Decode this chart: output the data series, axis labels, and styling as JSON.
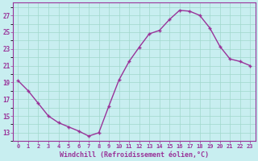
{
  "x": [
    0,
    1,
    2,
    3,
    4,
    5,
    6,
    7,
    8,
    9,
    10,
    11,
    12,
    13,
    14,
    15,
    16,
    17,
    18,
    19,
    20,
    21,
    22,
    23
  ],
  "y": [
    19.2,
    18.0,
    16.5,
    15.0,
    14.2,
    13.7,
    13.2,
    12.6,
    13.0,
    16.2,
    19.3,
    21.5,
    23.2,
    24.8,
    25.2,
    26.5,
    27.6,
    27.5,
    27.0,
    25.5,
    23.3,
    21.8,
    21.5,
    21.0
  ],
  "line_color": "#993399",
  "marker": "+",
  "marker_color": "#993399",
  "bg_color": "#c8eef0",
  "grid_color": "#a0d8cc",
  "xlabel": "Windchill (Refroidissement éolien,°C)",
  "xlabel_color": "#993399",
  "tick_color": "#993399",
  "spine_color": "#993399",
  "ylim": [
    12.0,
    28.5
  ],
  "yticks": [
    13,
    15,
    17,
    19,
    21,
    23,
    25,
    27
  ],
  "xticks": [
    0,
    1,
    2,
    3,
    4,
    5,
    6,
    7,
    8,
    9,
    10,
    11,
    12,
    13,
    14,
    15,
    16,
    17,
    18,
    19,
    20,
    21,
    22,
    23
  ],
  "xtick_labels": [
    "0",
    "1",
    "2",
    "3",
    "4",
    "5",
    "6",
    "7",
    "8",
    "9",
    "10",
    "11",
    "12",
    "13",
    "14",
    "15",
    "16",
    "17",
    "18",
    "19",
    "20",
    "21",
    "22",
    "23"
  ],
  "linewidth": 1.0,
  "markersize": 3.5
}
